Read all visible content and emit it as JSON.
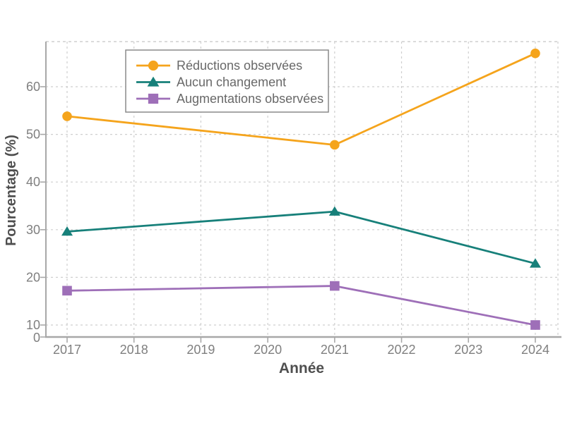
{
  "figure": {
    "xlabel": "Année",
    "ylabel": "Pourcentage (%)"
  },
  "legend": {
    "items": [
      {
        "label": "Réductions observées",
        "marker": "circle"
      },
      {
        "label": "Aucun changement",
        "marker": "triangle"
      },
      {
        "label": "Augmentations observées",
        "marker": "square"
      }
    ]
  },
  "colors": {
    "reductions": "#F5A41C",
    "aucun_changement": "#17807A",
    "augmentations": "#9E6FB8",
    "grid": "#cfcfcf",
    "spine": "#a8a8a8",
    "tick_text": "#7f7f7f",
    "title_text": "#4f4f4f",
    "legend_border": "#8a8a8a"
  },
  "chart_data": {
    "type": "line",
    "x": [
      2017,
      2021,
      2024
    ],
    "xticks": [
      2017,
      2018,
      2019,
      2020,
      2021,
      2022,
      2023,
      2024
    ],
    "yticks": [
      0,
      10,
      20,
      30,
      40,
      50,
      60
    ],
    "series": [
      {
        "name": "Réductions observées",
        "marker": "circle",
        "color": "#F5A41C",
        "values": [
          53.8,
          47.8,
          67.0
        ]
      },
      {
        "name": "Aucun changement",
        "marker": "triangle",
        "color": "#17807A",
        "values": [
          29.6,
          33.8,
          22.9
        ]
      },
      {
        "name": "Augmentations observées",
        "marker": "square",
        "color": "#9E6FB8",
        "values": [
          17.2,
          18.2,
          10.0
        ]
      }
    ],
    "xlabel": "Année",
    "ylabel": "Pourcentage (%)",
    "xlim": [
      2016.68,
      2024.34
    ],
    "ylim": [
      7.5,
      69.5
    ],
    "grid": true,
    "grid_style": "dashed",
    "legend_position": "upper-left-inset",
    "title": ""
  }
}
